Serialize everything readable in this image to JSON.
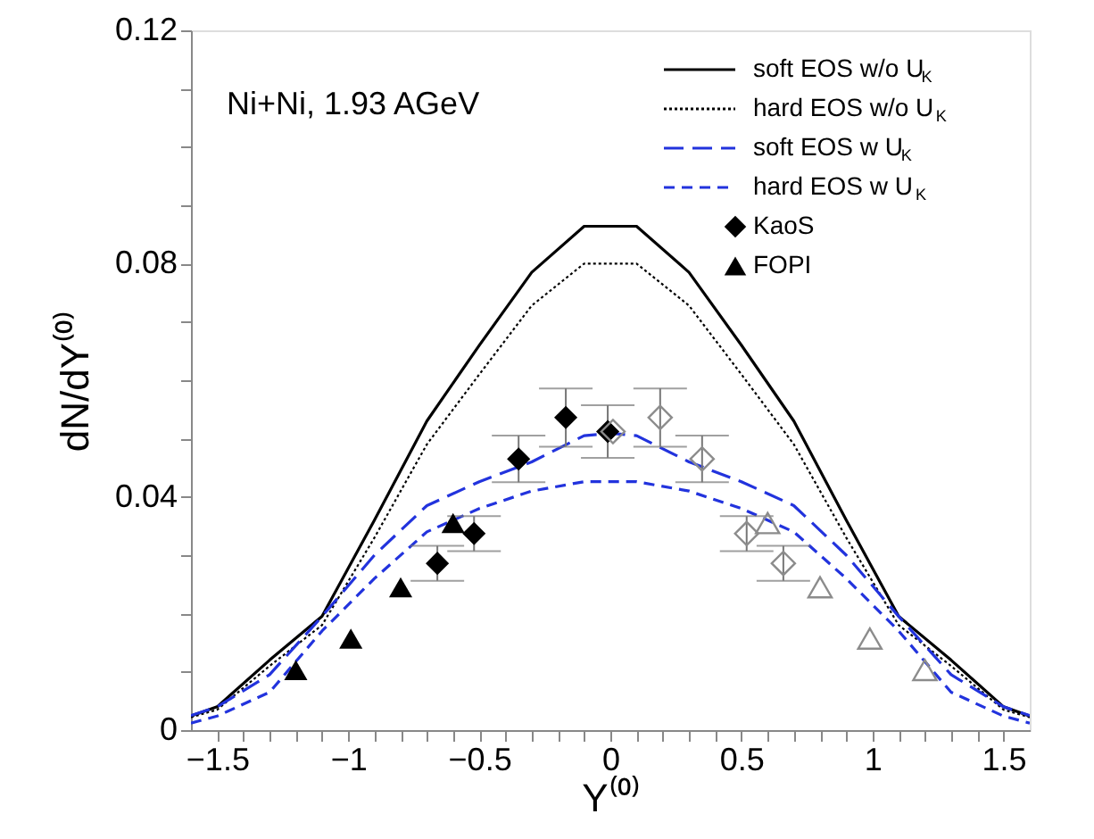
{
  "chart_data": {
    "type": "line",
    "xlabel": "Y⁽⁰⁾",
    "ylabel": "dN/dY⁽⁰⁾",
    "annotations": [
      "Ni+Ni, 1.93 AGeV"
    ],
    "xlim": [
      -1.6,
      1.6
    ],
    "ylim": [
      0,
      0.12
    ],
    "xticks": [
      {
        "value": -1.5,
        "label": "−1.5"
      },
      {
        "value": -1.4,
        "label": null
      },
      {
        "value": -1.3,
        "label": null
      },
      {
        "value": -1.2,
        "label": null
      },
      {
        "value": -1.1,
        "label": null
      },
      {
        "value": -1,
        "label": "−1"
      },
      {
        "value": -0.9,
        "label": null
      },
      {
        "value": -0.8,
        "label": null
      },
      {
        "value": -0.7,
        "label": null
      },
      {
        "value": -0.6,
        "label": null
      },
      {
        "value": -0.5,
        "label": "−0.5"
      },
      {
        "value": -0.4,
        "label": null
      },
      {
        "value": -0.3,
        "label": null
      },
      {
        "value": -0.2,
        "label": null
      },
      {
        "value": -0.1,
        "label": null
      },
      0,
      {
        "value": 0.1,
        "label": null
      },
      {
        "value": 0.2,
        "label": null
      },
      {
        "value": 0.3,
        "label": null
      },
      {
        "value": 0.4,
        "label": null
      },
      0.5,
      {
        "value": 0.6,
        "label": null
      },
      {
        "value": 0.7,
        "label": null
      },
      {
        "value": 0.8,
        "label": null
      },
      {
        "value": 0.9,
        "label": null
      },
      1,
      {
        "value": 1.1,
        "label": null
      },
      {
        "value": 1.2,
        "label": null
      },
      {
        "value": 1.3,
        "label": null
      },
      {
        "value": 1.4,
        "label": null
      },
      1.5
    ],
    "yticks": [
      0,
      {
        "value": 0.01,
        "label": null
      },
      {
        "value": 0.02,
        "label": null
      },
      {
        "value": 0.03,
        "label": null
      },
      0.04,
      {
        "value": 0.05,
        "label": null
      },
      {
        "value": 0.06,
        "label": null
      },
      {
        "value": 0.07,
        "label": null
      },
      0.08,
      {
        "value": 0.09,
        "label": null
      },
      {
        "value": 0.1,
        "label": null
      },
      {
        "value": 0.11,
        "label": null
      },
      0.12
    ],
    "grid": false,
    "legend": "top right",
    "series": [
      {
        "name": "soft EOS w/o U$_{K}$",
        "line_style": "solid",
        "color": "#000000",
        "x": [
          -1.6,
          -1.5,
          -1.3,
          -1.1,
          -0.9,
          -0.7,
          -0.5,
          -0.3,
          -0.1,
          0.1,
          0.3,
          0.5,
          0.7,
          0.9,
          1.1,
          1.3,
          1.5,
          1.6
        ],
        "values": [
          0.0024,
          0.004,
          0.012,
          0.0195,
          0.036,
          0.053,
          0.066,
          0.0785,
          0.0864,
          0.0864,
          0.0785,
          0.066,
          0.053,
          0.036,
          0.0195,
          0.012,
          0.004,
          0.0024
        ]
      },
      {
        "name": "hard EOS w/o U$_{K}$",
        "line_style": "dotted",
        "color": "#000000",
        "x": [
          -1.6,
          -1.5,
          -1.3,
          -1.1,
          -0.9,
          -0.7,
          -0.5,
          -0.3,
          -0.1,
          0.1,
          0.3,
          0.5,
          0.7,
          0.9,
          1.1,
          1.3,
          1.5,
          1.6
        ],
        "values": [
          0.0022,
          0.0035,
          0.011,
          0.018,
          0.033,
          0.049,
          0.061,
          0.0728,
          0.08,
          0.08,
          0.0728,
          0.061,
          0.049,
          0.033,
          0.018,
          0.011,
          0.0035,
          0.0022
        ]
      },
      {
        "name": "soft EOS w U$_{K}$",
        "line_style": "dashed",
        "color": "#2233dd",
        "x": [
          -1.6,
          -1.5,
          -1.3,
          -1.1,
          -0.9,
          -0.7,
          -0.5,
          -0.3,
          -0.1,
          0,
          0.1,
          0.3,
          0.5,
          0.7,
          0.9,
          1.1,
          1.3,
          1.5,
          1.6
        ],
        "values": [
          0.0025,
          0.004,
          0.0095,
          0.0195,
          0.03,
          0.0385,
          0.0426,
          0.046,
          0.0505,
          0.0509,
          0.0505,
          0.046,
          0.0426,
          0.0385,
          0.03,
          0.0195,
          0.0095,
          0.004,
          0.0025
        ]
      },
      {
        "name": "hard EOS w U$_{K}$",
        "line_style": "dashed",
        "color": "#2233dd",
        "x": [
          -1.6,
          -1.5,
          -1.3,
          -1.1,
          -0.9,
          -0.7,
          -0.5,
          -0.3,
          -0.1,
          0.1,
          0.3,
          0.5,
          0.7,
          0.9,
          1.1,
          1.3,
          1.5,
          1.6
        ],
        "values": [
          0.0012,
          0.0024,
          0.0065,
          0.017,
          0.026,
          0.034,
          0.038,
          0.041,
          0.0426,
          0.0426,
          0.041,
          0.038,
          0.034,
          0.026,
          0.017,
          0.0065,
          0.0024,
          0.0012
        ]
      },
      {
        "name": "KaoS",
        "type": "scatter",
        "marker": "diamond",
        "color": "#000000",
        "x": [
          -0.66,
          -0.52,
          -0.35,
          -0.17,
          -0.01
        ],
        "values": [
          0.0286,
          0.0337,
          0.0465,
          0.0536,
          0.0512
        ],
        "errors": [
          0.003,
          0.003,
          0.004,
          0.005,
          0.0045
        ]
      },
      {
        "type": "scatter",
        "marker": "diamond",
        "color": "#8c8c8c",
        "x": [
          0.01,
          0.19,
          0.35,
          0.52,
          0.66
        ],
        "values": [
          0.0512,
          0.0536,
          0.0465,
          0.0337,
          0.0286
        ],
        "errors": [
          null,
          0.005,
          0.004,
          0.003,
          0.003
        ]
      },
      {
        "name": "FOPI",
        "type": "scatter",
        "marker": "triangle",
        "color": "#000000",
        "x": [
          -1.2,
          -0.99,
          -0.8,
          -0.6
        ],
        "values": [
          0.0103,
          0.0157,
          0.0245,
          0.0355
        ]
      },
      {
        "type": "scatter",
        "marker": "triangle",
        "color": "#8c8c8c",
        "x": [
          0.6,
          0.8,
          0.99,
          1.2
        ],
        "values": [
          0.0355,
          0.0245,
          0.0157,
          0.0103
        ]
      }
    ]
  }
}
